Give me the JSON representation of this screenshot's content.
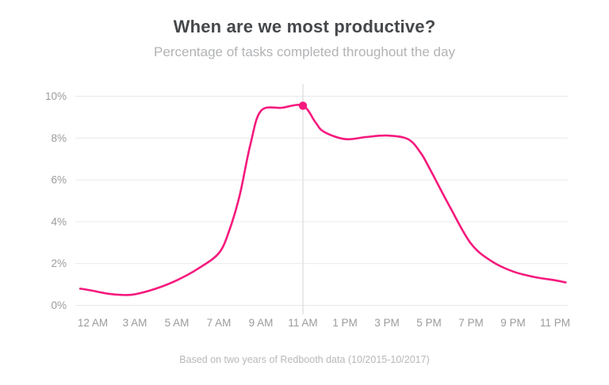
{
  "chart_data": {
    "type": "line",
    "title": "When are we most productive?",
    "subtitle": "Percentage of tasks completed throughout the day",
    "footnote": "Based on two years of Redbooth data (10/2015-10/2017)",
    "ylim": [
      0,
      10
    ],
    "grid": "horizontal",
    "legend": "none",
    "y_ticks": [
      "0%",
      "2%",
      "4%",
      "6%",
      "8%",
      "10%"
    ],
    "y_tick_values": [
      0,
      2,
      4,
      6,
      8,
      10
    ],
    "x_tick_labels": [
      "12 AM",
      "3 AM",
      "5 AM",
      "7 AM",
      "9 AM",
      "11 AM",
      "1 PM",
      "3 PM",
      "5 PM",
      "7 PM",
      "9 PM",
      "11 PM"
    ],
    "series": [
      {
        "name": "Percentage of tasks completed",
        "color": "#f5197d",
        "points": [
          {
            "x": -0.3,
            "time": "",
            "pct": 0.8
          },
          {
            "x": 0,
            "time": "12 AM",
            "pct": 0.7
          },
          {
            "x": 0.35,
            "time": "1 AM",
            "pct": 0.56
          },
          {
            "x": 0.7,
            "time": "2 AM",
            "pct": 0.5
          },
          {
            "x": 1,
            "time": "3 AM",
            "pct": 0.53
          },
          {
            "x": 1.5,
            "time": "4 AM",
            "pct": 0.8
          },
          {
            "x": 2,
            "time": "5 AM",
            "pct": 1.2
          },
          {
            "x": 2.5,
            "time": "6 AM",
            "pct": 1.75
          },
          {
            "x": 3,
            "time": "7 AM",
            "pct": 2.5
          },
          {
            "x": 3.25,
            "time": "",
            "pct": 3.6
          },
          {
            "x": 3.5,
            "time": "8 AM",
            "pct": 5.3
          },
          {
            "x": 3.75,
            "time": "",
            "pct": 7.7
          },
          {
            "x": 4,
            "time": "9 AM",
            "pct": 9.3
          },
          {
            "x": 4.5,
            "time": "10 AM",
            "pct": 9.45
          },
          {
            "x": 5,
            "time": "11 AM",
            "pct": 9.55
          },
          {
            "x": 5.3,
            "time": "",
            "pct": 8.75
          },
          {
            "x": 5.5,
            "time": "12 PM",
            "pct": 8.3
          },
          {
            "x": 6,
            "time": "1 PM",
            "pct": 7.95
          },
          {
            "x": 6.5,
            "time": "2 PM",
            "pct": 8.05
          },
          {
            "x": 7,
            "time": "3 PM",
            "pct": 8.12
          },
          {
            "x": 7.5,
            "time": "4 PM",
            "pct": 7.95
          },
          {
            "x": 7.8,
            "time": "",
            "pct": 7.3
          },
          {
            "x": 8,
            "time": "5 PM",
            "pct": 6.6
          },
          {
            "x": 8.5,
            "time": "6 PM",
            "pct": 4.7
          },
          {
            "x": 9,
            "time": "7 PM",
            "pct": 2.95
          },
          {
            "x": 9.5,
            "time": "8 PM",
            "pct": 2.1
          },
          {
            "x": 10,
            "time": "9 PM",
            "pct": 1.62
          },
          {
            "x": 10.5,
            "time": "10 PM",
            "pct": 1.36
          },
          {
            "x": 11,
            "time": "11 PM",
            "pct": 1.2
          },
          {
            "x": 11.25,
            "time": "",
            "pct": 1.1
          }
        ]
      }
    ],
    "peak_marker": {
      "time": "11 AM",
      "x": 5,
      "pct": 9.55
    }
  },
  "colors": {
    "line": "#f5197d",
    "grid": "#e9e9e9",
    "marker_line": "#e2e2e2",
    "tick_text": "#9b9b9b",
    "title_text": "#45484b",
    "subtitle_text": "#b2b3b5",
    "footnote_text": "#b7b8ba",
    "background": "#ffffff"
  }
}
